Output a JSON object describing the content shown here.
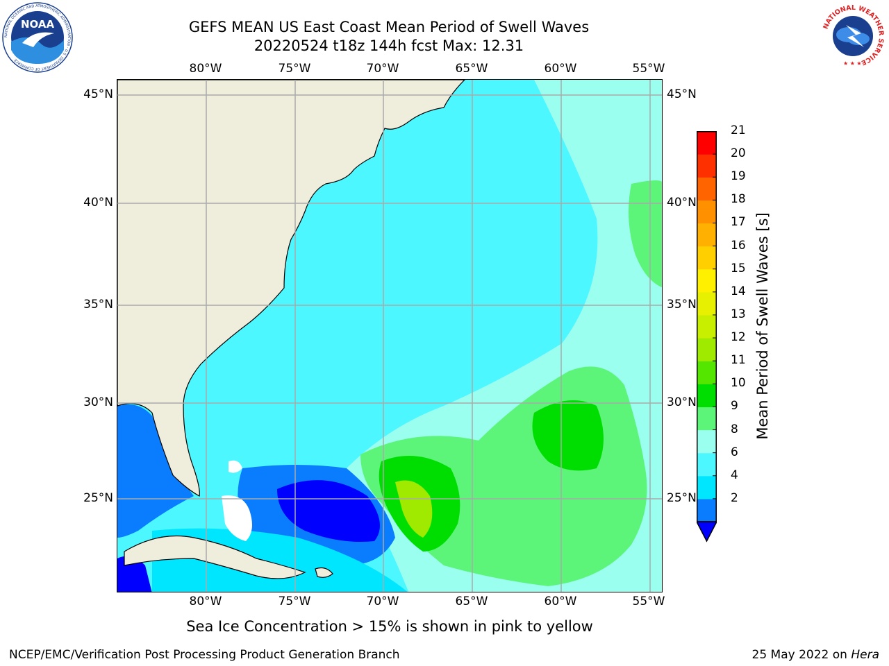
{
  "title": {
    "line1": "GEFS MEAN US East Coast Mean Period of Swell Waves",
    "line2": "20220524 t18z 144h fcst   Max: 12.31"
  },
  "map": {
    "lon_labels": [
      "80°W",
      "75°W",
      "70°W",
      "65°W",
      "60°W",
      "55°W"
    ],
    "lat_labels": [
      "45°N",
      "40°N",
      "35°N",
      "30°N",
      "25°N"
    ],
    "land_color": "#efeddc",
    "ocean_base_color": "#4df7ff"
  },
  "colorbar": {
    "label": "Mean Period of Swell Waves [s]",
    "ticks": [
      "21",
      "20",
      "19",
      "18",
      "17",
      "16",
      "15",
      "14",
      "13",
      "12",
      "11",
      "10",
      "9",
      "8",
      "6",
      "4",
      "2"
    ],
    "colors_bottom_to_top": [
      "#0a7dff",
      "#00e6ff",
      "#4df7ff",
      "#9bfff0",
      "#5cf57a",
      "#00dd00",
      "#55e600",
      "#a0ea00",
      "#c8ee00",
      "#e6f000",
      "#fff000",
      "#ffcf00",
      "#ffb000",
      "#ff9000",
      "#ff6400",
      "#ff3000",
      "#ff0000"
    ],
    "under_color": "#0000ff"
  },
  "note": "Sea Ice Concentration > 15% is shown in pink to yellow",
  "footer": {
    "left": "NCEP/EMC/Verification Post Processing Product Generation Branch",
    "right_date": "25 May 2022 on",
    "right_machine": "Hera"
  },
  "logos": {
    "noaa_text": "NOAA",
    "noaa_ring_text": "NATIONAL OCEANIC AND ATMOSPHERIC ADMINISTRATION · U.S. DEPARTMENT OF COMMERCE",
    "nws_ring_text": "NATIONAL WEATHER SERVICE"
  }
}
